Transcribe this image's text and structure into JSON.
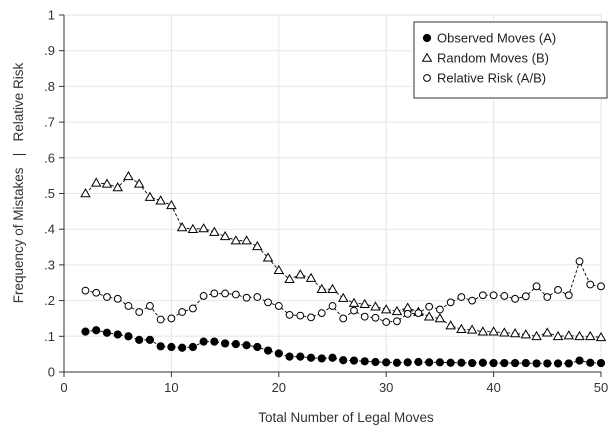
{
  "chart_data": {
    "type": "scatter",
    "xlabel": "Total Number of Legal Moves",
    "ylabel": "Frequency of Mistakes   |   Relative Risk",
    "xlim": [
      0,
      50
    ],
    "ylim": [
      0,
      1
    ],
    "x_ticks": [
      "0",
      "10",
      "20",
      "30",
      "40",
      "50"
    ],
    "y_ticks": [
      "0",
      ".1",
      ".2",
      ".3",
      ".4",
      ".5",
      ".6",
      ".7",
      ".8",
      ".9",
      "1"
    ],
    "grid": true,
    "legend_position": "top-right",
    "x": [
      2,
      3,
      4,
      5,
      6,
      7,
      8,
      9,
      10,
      11,
      12,
      13,
      14,
      15,
      16,
      17,
      18,
      19,
      20,
      21,
      22,
      23,
      24,
      25,
      26,
      27,
      28,
      29,
      30,
      31,
      32,
      33,
      34,
      35,
      36,
      37,
      38,
      39,
      40,
      41,
      42,
      43,
      44,
      45,
      46,
      47,
      48,
      49,
      50
    ],
    "series": [
      {
        "name": "Observed Moves (A)",
        "marker": "filled-circle",
        "values": [
          0.113,
          0.117,
          0.11,
          0.105,
          0.1,
          0.09,
          0.09,
          0.072,
          0.07,
          0.068,
          0.07,
          0.085,
          0.085,
          0.08,
          0.078,
          0.075,
          0.07,
          0.06,
          0.052,
          0.043,
          0.043,
          0.04,
          0.038,
          0.04,
          0.033,
          0.032,
          0.03,
          0.028,
          0.027,
          0.026,
          0.027,
          0.028,
          0.027,
          0.027,
          0.026,
          0.026,
          0.025,
          0.026,
          0.025,
          0.025,
          0.025,
          0.025,
          0.024,
          0.024,
          0.024,
          0.024,
          0.032,
          0.026,
          0.025
        ]
      },
      {
        "name": "Random Moves (B)",
        "marker": "hollow-triangle",
        "values": [
          0.5,
          0.53,
          0.527,
          0.517,
          0.548,
          0.527,
          0.49,
          0.48,
          0.467,
          0.405,
          0.4,
          0.402,
          0.392,
          0.38,
          0.368,
          0.368,
          0.352,
          0.32,
          0.285,
          0.26,
          0.273,
          0.263,
          0.232,
          0.232,
          0.207,
          0.193,
          0.19,
          0.183,
          0.175,
          0.17,
          0.18,
          0.168,
          0.155,
          0.15,
          0.13,
          0.12,
          0.118,
          0.113,
          0.113,
          0.11,
          0.108,
          0.105,
          0.1,
          0.11,
          0.1,
          0.102,
          0.1,
          0.1,
          0.097
        ]
      },
      {
        "name": "Relative Risk (A/B)",
        "marker": "hollow-circle",
        "values": [
          0.228,
          0.222,
          0.21,
          0.205,
          0.185,
          0.168,
          0.185,
          0.147,
          0.15,
          0.168,
          0.178,
          0.213,
          0.22,
          0.22,
          0.217,
          0.208,
          0.21,
          0.195,
          0.185,
          0.16,
          0.158,
          0.153,
          0.165,
          0.185,
          0.15,
          0.172,
          0.155,
          0.152,
          0.14,
          0.142,
          0.163,
          0.165,
          0.183,
          0.175,
          0.195,
          0.21,
          0.2,
          0.215,
          0.215,
          0.213,
          0.205,
          0.212,
          0.24,
          0.21,
          0.23,
          0.215,
          0.31,
          0.245,
          0.24
        ]
      }
    ]
  }
}
